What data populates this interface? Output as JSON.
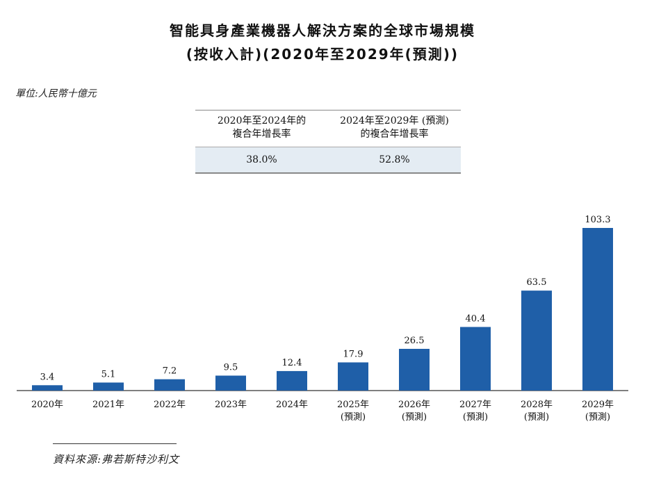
{
  "title_line1": "智能具身產業機器人解決方案的全球市場規模",
  "title_line2": "(按收入計)(2020年至2029年(預測))",
  "unit": "單位:人民幣十億元",
  "cagr_table": {
    "headers": [
      "2020年至2024年的\n複合年增長率",
      "2024年至2029年 (預測)\n的複合年增長率"
    ],
    "values": [
      "38.0%",
      "52.8%"
    ]
  },
  "source": "資料來源:弗若斯特沙利文",
  "chart_data": {
    "type": "bar",
    "categories": [
      "2020年",
      "2021年",
      "2022年",
      "2023年",
      "2024年",
      "2025年\n(預測)",
      "2026年\n(預測)",
      "2027年\n(預測)",
      "2028年\n(預測)",
      "2029年\n(預測)"
    ],
    "values": [
      3.4,
      5.1,
      7.2,
      9.5,
      12.4,
      17.9,
      26.5,
      40.4,
      63.5,
      103.3
    ],
    "value_labels": [
      "3.4",
      "5.1",
      "7.2",
      "9.5",
      "12.4",
      "17.9",
      "26.5",
      "40.4",
      "63.5",
      "103.3"
    ],
    "bar_color": "#1f5fa8",
    "ylim": [
      0,
      103.3
    ],
    "grid": false,
    "title": "",
    "xlabel": "",
    "ylabel": ""
  }
}
